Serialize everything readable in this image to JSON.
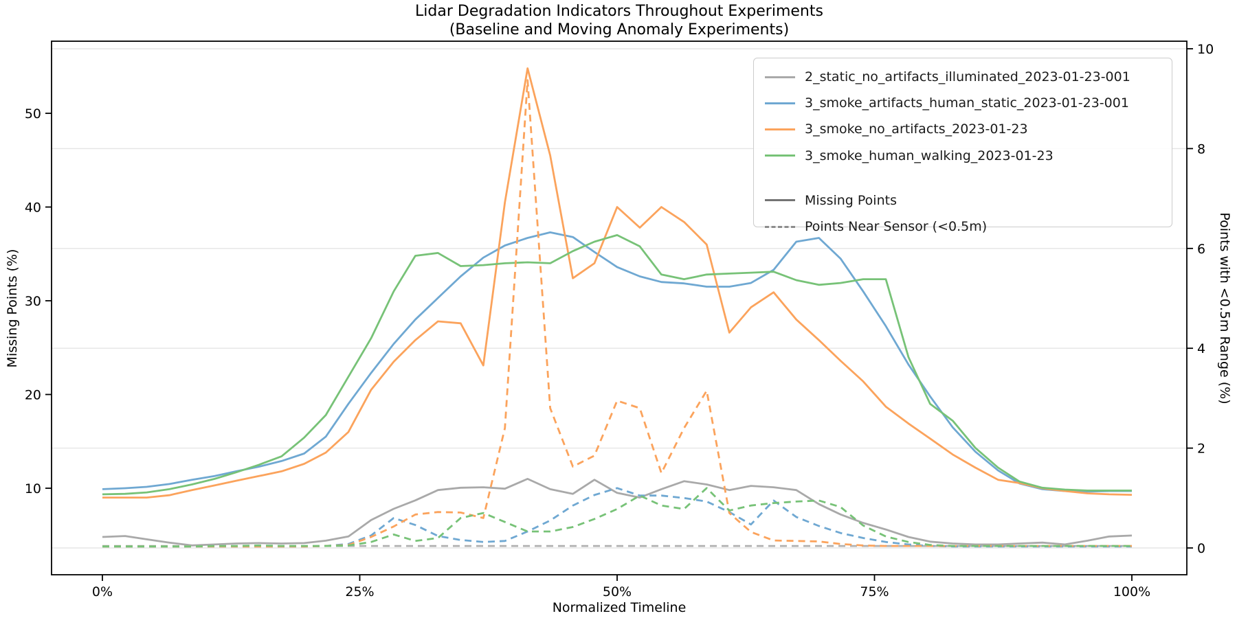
{
  "chart_data": {
    "type": "line",
    "title": "Lidar Degradation Indicators Throughout Experiments",
    "subtitle": "(Baseline and Moving Anomaly Experiments)",
    "xlabel": "Normalized Timeline",
    "ylabel_left": "Missing Points (%)",
    "ylabel_right": "Points with <0.5m Range (%)",
    "x_tick_labels": [
      "0%",
      "25%",
      "50%",
      "75%",
      "100%"
    ],
    "x_tick_values": [
      0,
      25,
      50,
      75,
      100
    ],
    "y_left_tick_values": [
      10,
      20,
      30,
      40,
      50
    ],
    "y_right_tick_values": [
      0,
      2,
      4,
      6,
      8,
      10
    ],
    "xlim": [
      -4.9,
      105.3
    ],
    "ylim_left": [
      0.8,
      57.7
    ],
    "ylim_right": [
      -0.54,
      10.15
    ],
    "grid": "horizontal-on-right-axis-ticks",
    "legend_position": "upper right",
    "line_styles": {
      "missing_points": "solid",
      "points_near_sensor": "dashed"
    },
    "x": [
      0,
      2.2,
      4.3,
      6.5,
      8.7,
      10.9,
      13.0,
      15.2,
      17.4,
      19.6,
      21.7,
      23.9,
      26.1,
      28.3,
      30.4,
      32.6,
      34.8,
      37.0,
      39.1,
      41.3,
      43.5,
      45.7,
      47.8,
      50.0,
      52.2,
      54.3,
      56.5,
      58.7,
      60.9,
      63.0,
      65.2,
      67.4,
      69.6,
      71.7,
      73.9,
      76.1,
      78.3,
      80.4,
      82.6,
      84.8,
      87.0,
      89.1,
      91.3,
      93.5,
      95.7,
      97.8,
      100
    ],
    "series": [
      {
        "name": "2_static_no_artifacts_illuminated_2023-01-23-001",
        "metric": "Missing Points",
        "axis": "left",
        "style": "solid",
        "color": "#a9a9a9",
        "values": [
          4.8,
          4.9,
          4.55,
          4.2,
          3.9,
          4.0,
          4.1,
          4.15,
          4.1,
          4.15,
          4.4,
          4.85,
          6.6,
          7.8,
          8.7,
          9.8,
          10.05,
          10.1,
          9.95,
          11.0,
          9.9,
          9.4,
          10.9,
          9.5,
          9.0,
          9.9,
          10.75,
          10.4,
          9.8,
          10.25,
          10.1,
          9.8,
          8.3,
          7.2,
          6.3,
          5.6,
          4.8,
          4.3,
          4.1,
          4.0,
          4.0,
          4.1,
          4.2,
          4.0,
          4.4,
          4.85,
          4.95
        ]
      },
      {
        "name": "3_smoke_artifacts_human_static_2023-01-23-001",
        "metric": "Missing Points",
        "axis": "left",
        "style": "solid",
        "color": "#6fa8d2",
        "values": [
          9.9,
          10.0,
          10.15,
          10.45,
          10.9,
          11.3,
          11.8,
          12.3,
          12.9,
          13.7,
          15.5,
          19.0,
          22.3,
          25.4,
          28.0,
          30.3,
          32.6,
          34.6,
          35.9,
          36.7,
          37.3,
          36.8,
          35.2,
          33.6,
          32.6,
          32.0,
          31.85,
          31.5,
          31.5,
          31.9,
          33.3,
          36.3,
          36.7,
          34.5,
          31.0,
          27.3,
          23.2,
          19.8,
          16.5,
          13.9,
          11.9,
          10.5,
          9.9,
          9.7,
          9.65,
          9.7,
          9.7
        ]
      },
      {
        "name": "3_smoke_no_artifacts_2023-01-23",
        "metric": "Missing Points",
        "axis": "left",
        "style": "solid",
        "color": "#fba35c",
        "values": [
          9.0,
          9.0,
          9.0,
          9.25,
          9.8,
          10.3,
          10.8,
          11.3,
          11.8,
          12.6,
          13.8,
          16.0,
          20.5,
          23.5,
          25.8,
          27.8,
          27.6,
          23.1,
          40.5,
          54.8,
          45.5,
          32.4,
          34.0,
          40.0,
          37.8,
          40.0,
          38.4,
          36.0,
          26.6,
          29.3,
          30.9,
          28.0,
          25.8,
          23.6,
          21.4,
          18.7,
          16.9,
          15.3,
          13.6,
          12.2,
          10.9,
          10.55,
          10.0,
          9.7,
          9.45,
          9.35,
          9.3
        ]
      },
      {
        "name": "3_smoke_human_walking_2023-01-23",
        "metric": "Missing Points",
        "axis": "left",
        "style": "solid",
        "color": "#77c277",
        "values": [
          9.35,
          9.4,
          9.55,
          9.9,
          10.4,
          11.0,
          11.7,
          12.5,
          13.4,
          15.4,
          17.8,
          21.9,
          26.0,
          31.0,
          34.8,
          35.1,
          33.7,
          33.8,
          34.0,
          34.1,
          34.0,
          35.3,
          36.3,
          37.0,
          35.8,
          32.8,
          32.3,
          32.8,
          32.9,
          33.0,
          33.1,
          32.2,
          31.7,
          31.9,
          32.3,
          32.3,
          24.0,
          19.0,
          17.2,
          14.3,
          12.2,
          10.7,
          10.05,
          9.85,
          9.75,
          9.75,
          9.75
        ]
      },
      {
        "name": "2_static_no_artifacts_illuminated_2023-01-23-001",
        "metric": "Points Near Sensor (<0.5m)",
        "axis": "right",
        "style": "dashed",
        "color": "#b0b0b0",
        "values": [
          0.04,
          0.04,
          0.04,
          0.04,
          0.04,
          0.04,
          0.04,
          0.04,
          0.04,
          0.04,
          0.04,
          0.04,
          0.04,
          0.04,
          0.04,
          0.04,
          0.04,
          0.04,
          0.04,
          0.04,
          0.04,
          0.04,
          0.04,
          0.04,
          0.04,
          0.04,
          0.04,
          0.04,
          0.04,
          0.04,
          0.04,
          0.04,
          0.04,
          0.04,
          0.04,
          0.04,
          0.04,
          0.04,
          0.04,
          0.04,
          0.04,
          0.04,
          0.04,
          0.04,
          0.04,
          0.04,
          0.04
        ]
      },
      {
        "name": "3_smoke_artifacts_human_static_2023-01-23-001",
        "metric": "Points Near Sensor (<0.5m)",
        "axis": "right",
        "style": "dashed",
        "color": "#6fa8d2",
        "values": [
          0.03,
          0.03,
          0.03,
          0.03,
          0.03,
          0.03,
          0.03,
          0.03,
          0.03,
          0.03,
          0.04,
          0.08,
          0.25,
          0.6,
          0.46,
          0.24,
          0.16,
          0.12,
          0.14,
          0.33,
          0.55,
          0.85,
          1.06,
          1.2,
          1.05,
          1.05,
          1.0,
          0.93,
          0.72,
          0.47,
          0.95,
          0.62,
          0.44,
          0.3,
          0.2,
          0.12,
          0.07,
          0.04,
          0.03,
          0.03,
          0.03,
          0.03,
          0.03,
          0.03,
          0.03,
          0.03,
          0.03
        ]
      },
      {
        "name": "3_smoke_no_artifacts_2023-01-23",
        "metric": "Points Near Sensor (<0.5m)",
        "axis": "right",
        "style": "dashed",
        "color": "#fba35c",
        "values": [
          0.03,
          0.03,
          0.03,
          0.03,
          0.03,
          0.03,
          0.03,
          0.03,
          0.03,
          0.03,
          0.04,
          0.06,
          0.22,
          0.43,
          0.67,
          0.72,
          0.71,
          0.6,
          2.4,
          9.37,
          2.8,
          1.63,
          1.85,
          2.95,
          2.8,
          1.5,
          2.4,
          3.15,
          0.7,
          0.32,
          0.15,
          0.14,
          0.13,
          0.08,
          0.05,
          0.04,
          0.04,
          0.04,
          0.04,
          0.04,
          0.04,
          0.04,
          0.04,
          0.04,
          0.04,
          0.04,
          0.04
        ]
      },
      {
        "name": "3_smoke_human_walking_2023-01-23",
        "metric": "Points Near Sensor (<0.5m)",
        "axis": "right",
        "style": "dashed",
        "color": "#77c277",
        "values": [
          0.03,
          0.03,
          0.03,
          0.03,
          0.03,
          0.04,
          0.04,
          0.05,
          0.04,
          0.04,
          0.04,
          0.05,
          0.12,
          0.27,
          0.14,
          0.2,
          0.6,
          0.7,
          0.52,
          0.33,
          0.33,
          0.42,
          0.58,
          0.78,
          1.05,
          0.85,
          0.78,
          1.2,
          0.75,
          0.85,
          0.9,
          0.93,
          0.95,
          0.82,
          0.45,
          0.23,
          0.12,
          0.06,
          0.04,
          0.04,
          0.04,
          0.04,
          0.04,
          0.04,
          0.04,
          0.04,
          0.04
        ]
      }
    ],
    "legend": {
      "series_entries": [
        {
          "label": "2_static_no_artifacts_illuminated_2023-01-23-001",
          "color": "#a9a9a9"
        },
        {
          "label": "3_smoke_artifacts_human_static_2023-01-23-001",
          "color": "#6fa8d2"
        },
        {
          "label": "3_smoke_no_artifacts_2023-01-23",
          "color": "#fba35c"
        },
        {
          "label": "3_smoke_human_walking_2023-01-23",
          "color": "#77c277"
        }
      ],
      "style_entries": [
        {
          "label": "Missing Points",
          "style": "solid",
          "color": "#737373"
        },
        {
          "label": "Points Near Sensor (<0.5m)",
          "style": "dashed",
          "color": "#8c8c8c"
        }
      ]
    },
    "colors": {
      "axis": "#000000",
      "grid": "#e5e5e5",
      "background": "#ffffff"
    }
  }
}
